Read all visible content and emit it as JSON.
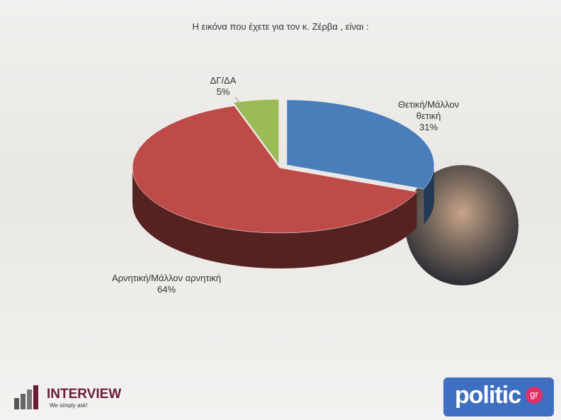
{
  "chart_data": {
    "type": "pie",
    "title": "Η εικόνα που έχετε για τον κ. Ζέρβα , είναι :",
    "categories": [
      "Θετική/Μάλλον θετική",
      "Αρνητική/Μάλλον αρνητική",
      "ΔΓ/ΔΑ"
    ],
    "values": [
      31,
      64,
      5
    ],
    "value_labels": [
      "31%",
      "64%",
      "5%"
    ],
    "colors": [
      "#4a7ebb",
      "#be4b48",
      "#9bbb59"
    ]
  },
  "logos": {
    "interview": "INTERVIEW",
    "tagline": "We simply ask!",
    "politic": "politic",
    "gr": "gr"
  }
}
